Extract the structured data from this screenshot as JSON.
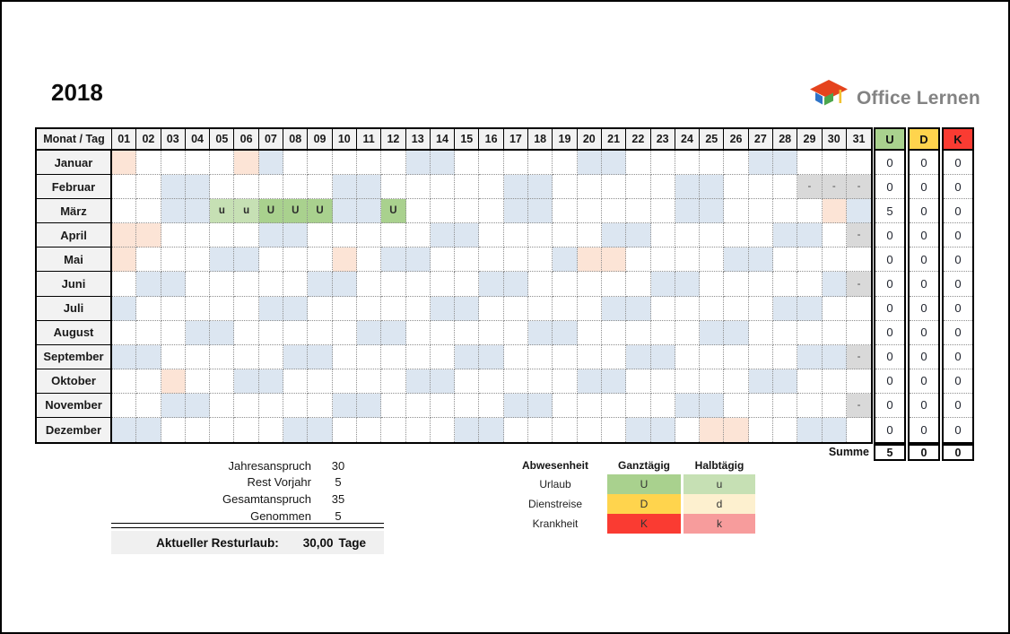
{
  "page": {
    "year_title": "2018"
  },
  "logo": {
    "text": "Office Lernen",
    "icon": "graduation-cap-icon",
    "text_color": "#838383",
    "icon_colors": {
      "cap_top": "#e5431d",
      "face_left": "#2e74c8",
      "face_right": "#4ca64c",
      "tassel": "#f1c232"
    }
  },
  "grid": {
    "corner_label": "Monat / Tag",
    "day_labels": [
      "01",
      "02",
      "03",
      "04",
      "05",
      "06",
      "07",
      "08",
      "09",
      "10",
      "11",
      "12",
      "13",
      "14",
      "15",
      "16",
      "17",
      "18",
      "19",
      "20",
      "21",
      "22",
      "23",
      "24",
      "25",
      "26",
      "27",
      "28",
      "29",
      "30",
      "31"
    ],
    "summary_headers": [
      {
        "label": "U",
        "color": "#a9d18e"
      },
      {
        "label": "D",
        "color": "#ffd44d"
      },
      {
        "label": "K",
        "color": "#fa3b32"
      }
    ],
    "markers": {
      "vacation_full": "U",
      "vacation_half": "u",
      "out_of_month": "-"
    },
    "cell_colors": {
      "weekend": "#dce6f1",
      "holiday": "#fce4d6",
      "out_of_month": "#d9d9d9",
      "vacation_full": "#a9d18e",
      "vacation_half": "#c6e0b4",
      "header_bg": "#f2f2f2"
    },
    "months": [
      {
        "name": "Januar",
        "days": 31,
        "weekends": [
          7,
          13,
          14,
          20,
          21,
          27,
          28
        ],
        "holidays": [
          1,
          6
        ],
        "vacation_full": [],
        "vacation_half": [],
        "totals": [
          "0",
          "0",
          "0"
        ]
      },
      {
        "name": "Februar",
        "days": 28,
        "weekends": [
          3,
          4,
          10,
          11,
          17,
          18,
          24,
          25
        ],
        "holidays": [],
        "vacation_full": [],
        "vacation_half": [],
        "totals": [
          "0",
          "0",
          "0"
        ]
      },
      {
        "name": "März",
        "days": 31,
        "weekends": [
          3,
          4,
          10,
          11,
          17,
          18,
          24,
          25,
          31
        ],
        "holidays": [
          30
        ],
        "vacation_full": [
          7,
          8,
          9,
          12
        ],
        "vacation_half": [
          5,
          6
        ],
        "totals": [
          "5",
          "0",
          "0"
        ]
      },
      {
        "name": "April",
        "days": 30,
        "weekends": [
          7,
          8,
          14,
          15,
          21,
          22,
          28,
          29
        ],
        "holidays": [
          1,
          2
        ],
        "vacation_full": [],
        "vacation_half": [],
        "totals": [
          "0",
          "0",
          "0"
        ]
      },
      {
        "name": "Mai",
        "days": 31,
        "weekends": [
          5,
          6,
          12,
          13,
          19,
          26,
          27
        ],
        "holidays": [
          1,
          10,
          20,
          21
        ],
        "vacation_full": [],
        "vacation_half": [],
        "totals": [
          "0",
          "0",
          "0"
        ]
      },
      {
        "name": "Juni",
        "days": 30,
        "weekends": [
          2,
          3,
          9,
          10,
          16,
          17,
          23,
          24,
          30
        ],
        "holidays": [],
        "vacation_full": [],
        "vacation_half": [],
        "totals": [
          "0",
          "0",
          "0"
        ]
      },
      {
        "name": "Juli",
        "days": 31,
        "weekends": [
          1,
          7,
          8,
          14,
          15,
          21,
          22,
          28,
          29
        ],
        "holidays": [],
        "vacation_full": [],
        "vacation_half": [],
        "totals": [
          "0",
          "0",
          "0"
        ]
      },
      {
        "name": "August",
        "days": 31,
        "weekends": [
          4,
          5,
          11,
          12,
          18,
          19,
          25,
          26
        ],
        "holidays": [],
        "vacation_full": [],
        "vacation_half": [],
        "totals": [
          "0",
          "0",
          "0"
        ]
      },
      {
        "name": "September",
        "days": 30,
        "weekends": [
          1,
          2,
          8,
          9,
          15,
          16,
          22,
          23,
          29,
          30
        ],
        "holidays": [],
        "vacation_full": [],
        "vacation_half": [],
        "totals": [
          "0",
          "0",
          "0"
        ]
      },
      {
        "name": "Oktober",
        "days": 31,
        "weekends": [
          6,
          7,
          13,
          14,
          20,
          21,
          27,
          28
        ],
        "holidays": [
          3
        ],
        "vacation_full": [],
        "vacation_half": [],
        "totals": [
          "0",
          "0",
          "0"
        ]
      },
      {
        "name": "November",
        "days": 30,
        "weekends": [
          3,
          4,
          10,
          11,
          17,
          18,
          24,
          25
        ],
        "holidays": [],
        "vacation_full": [],
        "vacation_half": [],
        "totals": [
          "0",
          "0",
          "0"
        ]
      },
      {
        "name": "Dezember",
        "days": 31,
        "weekends": [
          1,
          2,
          8,
          9,
          15,
          16,
          22,
          23,
          29,
          30
        ],
        "holidays": [
          25,
          26
        ],
        "vacation_full": [],
        "vacation_half": [],
        "totals": [
          "0",
          "0",
          "0"
        ]
      }
    ],
    "summe": {
      "label": "Summe",
      "values": [
        "5",
        "0",
        "0"
      ]
    }
  },
  "summary_block": {
    "rows": [
      {
        "label": "Jahresanspruch",
        "value": "30"
      },
      {
        "label": "Rest Vorjahr",
        "value": "5"
      },
      {
        "label": "Gesamtanspruch",
        "value": "35"
      },
      {
        "label": "Genommen",
        "value": "5"
      }
    ],
    "footer": {
      "label": "Aktueller Resturlaub:",
      "value": "30,00",
      "unit": "Tage"
    }
  },
  "legend": {
    "title": "Abwesenheit",
    "full_header": "Ganztägig",
    "half_header": "Halbtägig",
    "rows": [
      {
        "label": "Urlaub",
        "full": "U",
        "half": "u",
        "full_color": "#a9d18e",
        "half_color": "#c6e0b4"
      },
      {
        "label": "Dienstreise",
        "full": "D",
        "half": "d",
        "full_color": "#ffd44d",
        "half_color": "#fdf0cf"
      },
      {
        "label": "Krankheit",
        "full": "K",
        "half": "k",
        "full_color": "#fa3b32",
        "half_color": "#f79c9c"
      }
    ]
  }
}
